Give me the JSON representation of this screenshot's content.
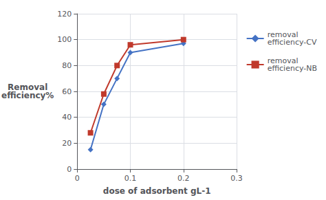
{
  "chart_data": {
    "type": "line",
    "xlabel": "dose of adsorbent gL-1",
    "ylabel": "Removal\nefficiency%",
    "x": [
      0.025,
      0.05,
      0.075,
      0.1,
      0.2
    ],
    "series": [
      {
        "name": "removal\nefficiency-CV",
        "color": "#4472c4",
        "marker": "diamond",
        "values": [
          15,
          50,
          70,
          90,
          97
        ]
      },
      {
        "name": "removal\nefficiency-NB",
        "color": "#c0392b",
        "marker": "square",
        "values": [
          28,
          58,
          80,
          96,
          100
        ]
      }
    ],
    "xlim": [
      0,
      0.3
    ],
    "ylim": [
      0,
      120
    ],
    "xticks": [
      0,
      0.1,
      0.2,
      0.3
    ],
    "yticks": [
      0,
      20,
      40,
      60,
      80,
      100,
      120
    ],
    "grid": true,
    "legend": "right"
  }
}
